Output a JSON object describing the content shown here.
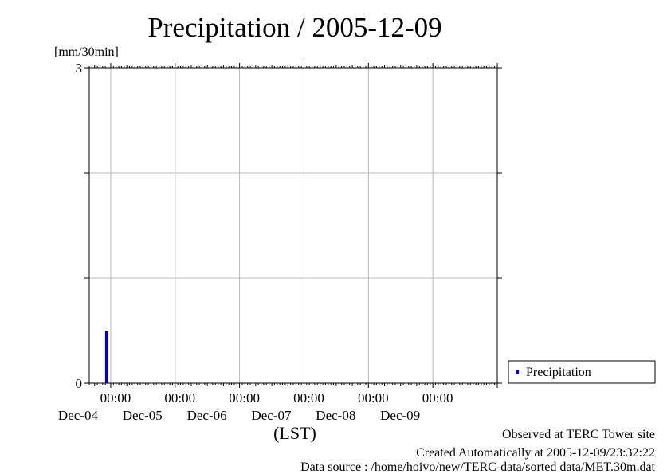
{
  "chart_data": {
    "type": "bar",
    "title": "Precipitation / 2005-12-09",
    "ylabel": "[mm/30min]",
    "xlabel": "(LST)",
    "ylim": [
      0,
      3
    ],
    "y_ticks": [
      0,
      3
    ],
    "y_gridlines": [
      0,
      1,
      2,
      3
    ],
    "x_range": [
      "2005-12-03 16:00",
      "2005-12-09 24:00"
    ],
    "x_ticks": [
      {
        "time": "00:00",
        "date": "Dec-04"
      },
      {
        "time": "00:00",
        "date": "Dec-05"
      },
      {
        "time": "00:00",
        "date": "Dec-06"
      },
      {
        "time": "00:00",
        "date": "Dec-07"
      },
      {
        "time": "00:00",
        "date": "Dec-08"
      },
      {
        "time": "00:00",
        "date": "Dec-09"
      }
    ],
    "grid": true,
    "legend_position": "right",
    "series": [
      {
        "name": "Precipitation",
        "color": "#0000cc",
        "points": [
          {
            "time": "2005-12-03 22:30",
            "value": 0.5
          }
        ]
      }
    ]
  },
  "footer": {
    "line1": "Observed at TERC Tower site",
    "line2": "Created Automatically at 2005-12-09/23:32:22",
    "line3": "Data source : /home/hoivo/new/TERC-data/sorted data/MET.30m.dat"
  }
}
